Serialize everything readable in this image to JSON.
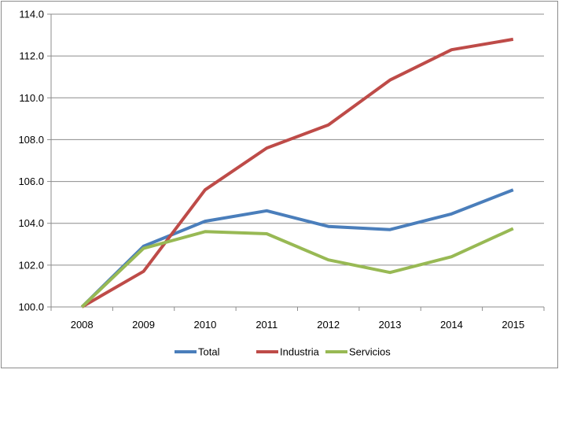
{
  "chart_data": {
    "type": "line",
    "title": "",
    "xlabel": "",
    "ylabel": "",
    "categories": [
      "2008",
      "2009",
      "2010",
      "2011",
      "2012",
      "2013",
      "2014",
      "2015"
    ],
    "ylim": [
      100,
      114
    ],
    "yticks": [
      "100.0",
      "102.0",
      "104.0",
      "106.0",
      "108.0",
      "110.0",
      "112.0",
      "114.0"
    ],
    "ytick_values": [
      100,
      102,
      104,
      106,
      108,
      110,
      112,
      114
    ],
    "grid": "horizontal",
    "legend_position": "bottom",
    "series": [
      {
        "name": "Total",
        "color": "#4a7ebb",
        "values": [
          100.0,
          102.9,
          104.1,
          104.6,
          103.85,
          103.7,
          104.45,
          105.6
        ]
      },
      {
        "name": "Industria",
        "color": "#be4b48",
        "values": [
          100.0,
          101.7,
          105.6,
          107.6,
          108.7,
          110.85,
          112.3,
          112.8
        ]
      },
      {
        "name": "Servicios",
        "color": "#98b954",
        "values": [
          100.0,
          102.8,
          103.6,
          103.5,
          102.25,
          101.65,
          102.4,
          103.75
        ]
      }
    ]
  }
}
